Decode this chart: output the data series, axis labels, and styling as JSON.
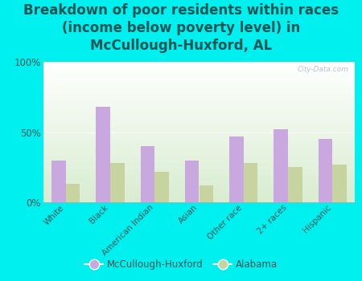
{
  "title": "Breakdown of poor residents within races\n(income below poverty level) in\nMcCullough-Huxford, AL",
  "categories": [
    "White",
    "Black",
    "American Indian",
    "Asian",
    "Other race",
    "2+ races",
    "Hispanic"
  ],
  "mccullough_values": [
    30,
    68,
    40,
    30,
    47,
    52,
    45
  ],
  "alabama_values": [
    13,
    28,
    22,
    12,
    28,
    25,
    27
  ],
  "mccullough_color": "#c9a8e0",
  "alabama_color": "#c8d4a0",
  "background_color": "#00f0f0",
  "ylabel_ticks": [
    "0%",
    "50%",
    "100%"
  ],
  "ytick_vals": [
    0,
    50,
    100
  ],
  "legend_mccullough": "McCullough-Huxford",
  "legend_alabama": "Alabama",
  "title_fontsize": 12,
  "title_color": "#1a5555",
  "tick_label_color": "#1a5555",
  "bar_width": 0.32,
  "watermark": "City-Data.com"
}
